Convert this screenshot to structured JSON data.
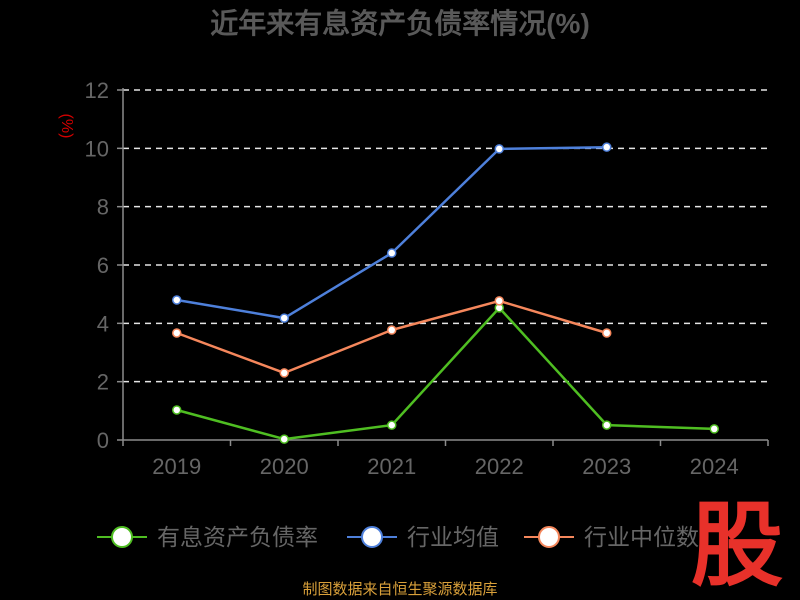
{
  "chart_data": {
    "type": "line",
    "title": "近年来有息资产负债率情况(%)",
    "ylabel": "(%)",
    "xlabel": "",
    "categories": [
      "2019",
      "2020",
      "2021",
      "2022",
      "2023",
      "2024"
    ],
    "ylim": [
      0,
      12
    ],
    "yticks": [
      0,
      2,
      4,
      6,
      8,
      10,
      12
    ],
    "grid": true,
    "legend_position": "bottom",
    "series": [
      {
        "name": "有息资产负债率",
        "color": "#4fbe22",
        "values": [
          1.03,
          0.03,
          0.51,
          4.53,
          0.51,
          0.38
        ]
      },
      {
        "name": "行业均值",
        "color": "#4e80db",
        "values": [
          4.8,
          4.18,
          6.41,
          9.98,
          10.04,
          null
        ]
      },
      {
        "name": "行业中位数",
        "color": "#f5875c",
        "values": [
          3.67,
          2.3,
          3.77,
          4.77,
          3.67,
          null
        ]
      }
    ]
  },
  "footer": {
    "source": "制图数据来自恒生聚源数据库"
  },
  "watermark": {
    "text": "股",
    "color": "#e8312a"
  }
}
